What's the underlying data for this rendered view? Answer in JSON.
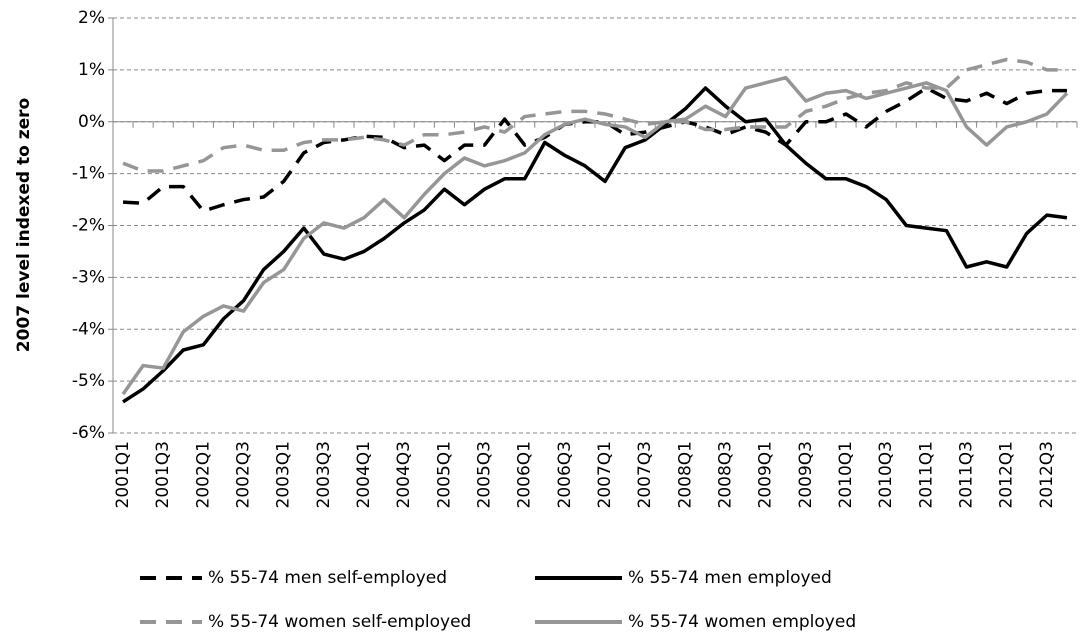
{
  "chart_data": {
    "type": "line",
    "y_label": "2007  level indexed to zero",
    "categories": [
      "2001Q1",
      null,
      "2001Q3",
      null,
      "2002Q1",
      null,
      "2002Q3",
      null,
      "2003Q1",
      null,
      "2003Q3",
      null,
      "2004Q1",
      null,
      "2004Q3",
      null,
      "2005Q1",
      null,
      "2005Q3",
      null,
      "2006Q1",
      null,
      "2006Q3",
      null,
      "2007Q1",
      null,
      "2007Q3",
      null,
      "2008Q1",
      null,
      "2008Q3",
      null,
      "2009Q1",
      null,
      "2009Q3",
      null,
      "2010Q1",
      null,
      "2010Q3",
      null,
      "2011Q1",
      null,
      "2011Q3",
      null,
      "2012Q1",
      null,
      "2012Q3",
      null
    ],
    "series": [
      {
        "name": "% 55-74 men self-employed",
        "color": "#000000",
        "style": "dashed",
        "values": [
          -1.55,
          -1.57,
          -1.25,
          -1.25,
          -1.72,
          -1.6,
          -1.5,
          -1.45,
          -1.15,
          -0.6,
          -0.4,
          -0.35,
          -0.28,
          -0.3,
          -0.5,
          -0.45,
          -0.75,
          -0.45,
          -0.45,
          0.05,
          -0.45,
          -0.3,
          -0.05,
          0.0,
          0.0,
          -0.25,
          -0.2,
          -0.1,
          0.0,
          -0.1,
          -0.25,
          -0.1,
          -0.2,
          -0.45,
          0.0,
          0.0,
          0.15,
          -0.1,
          0.2,
          0.4,
          0.65,
          0.45,
          0.4,
          0.55,
          0.35,
          0.55,
          0.6,
          0.6
        ]
      },
      {
        "name": "% 55-74 men employed",
        "color": "#000000",
        "style": "solid",
        "values": [
          -5.4,
          -5.15,
          -4.8,
          -4.4,
          -4.3,
          -3.8,
          -3.45,
          -2.85,
          -2.5,
          -2.05,
          -2.55,
          -2.65,
          -2.5,
          -2.25,
          -1.95,
          -1.7,
          -1.3,
          -1.6,
          -1.3,
          -1.1,
          -1.1,
          -0.4,
          -0.65,
          -0.85,
          -1.15,
          -0.5,
          -0.35,
          -0.05,
          0.25,
          0.65,
          0.3,
          0.0,
          0.05,
          -0.45,
          -0.8,
          -1.1,
          -1.1,
          -1.25,
          -1.5,
          -2.0,
          -2.05,
          -2.1,
          -2.8,
          -2.7,
          -2.8,
          -2.15,
          -1.8,
          -1.85
        ]
      },
      {
        "name": "% 55-74 women self-employed",
        "color": "#969696",
        "style": "dashed",
        "values": [
          -0.8,
          -0.95,
          -0.95,
          -0.85,
          -0.75,
          -0.5,
          -0.45,
          -0.55,
          -0.55,
          -0.4,
          -0.35,
          -0.35,
          -0.3,
          -0.35,
          -0.45,
          -0.25,
          -0.25,
          -0.2,
          -0.1,
          -0.2,
          0.1,
          0.15,
          0.2,
          0.2,
          0.15,
          0.05,
          -0.05,
          0.0,
          0.0,
          -0.15,
          -0.15,
          -0.1,
          -0.1,
          -0.1,
          0.2,
          0.3,
          0.45,
          0.55,
          0.6,
          0.75,
          0.65,
          0.65,
          1.0,
          1.1,
          1.2,
          1.15,
          1.0,
          1.0
        ]
      },
      {
        "name": "% 55-74 women employed",
        "color": "#969696",
        "style": "solid",
        "values": [
          -5.25,
          -4.7,
          -4.75,
          -4.05,
          -3.75,
          -3.55,
          -3.65,
          -3.1,
          -2.85,
          -2.25,
          -1.95,
          -2.05,
          -1.85,
          -1.5,
          -1.85,
          -1.4,
          -1.0,
          -0.7,
          -0.85,
          -0.75,
          -0.6,
          -0.25,
          -0.05,
          0.05,
          -0.05,
          -0.1,
          -0.3,
          0.0,
          0.05,
          0.3,
          0.1,
          0.65,
          0.75,
          0.85,
          0.4,
          0.55,
          0.6,
          0.45,
          0.55,
          0.65,
          0.75,
          0.6,
          -0.1,
          -0.45,
          -0.1,
          0.0,
          0.15,
          0.55
        ]
      }
    ],
    "ylim": [
      -6,
      2
    ],
    "yticks": [
      {
        "value": -6,
        "label": "-6%"
      },
      {
        "value": -5,
        "label": "-5%"
      },
      {
        "value": -4,
        "label": "-4%"
      },
      {
        "value": -3,
        "label": "-3%"
      },
      {
        "value": -2,
        "label": "-2%"
      },
      {
        "value": -1,
        "label": "-1%"
      },
      {
        "value": 0,
        "label": "0%"
      },
      {
        "value": 1,
        "label": "1%"
      },
      {
        "value": 2,
        "label": "2%"
      }
    ],
    "grid": true,
    "legend": "bottom"
  }
}
